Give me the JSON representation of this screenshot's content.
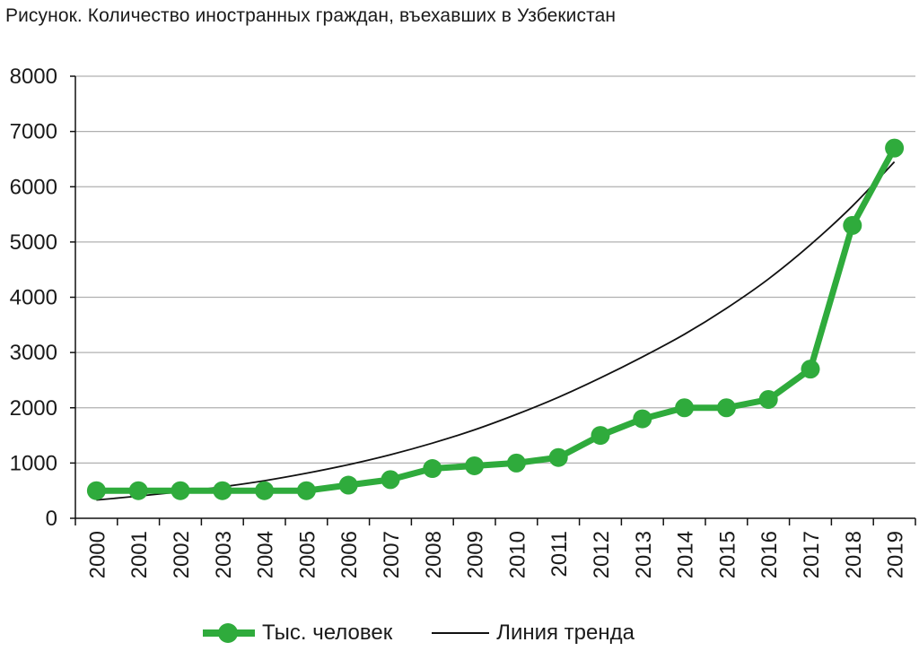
{
  "title": "Рисунок. Количество иностранных граждан, въехавших в Узбекистан",
  "colors": {
    "series": "#2fab3c",
    "trend": "#111111",
    "grid": "#b0b0b0",
    "axis": "#111111"
  },
  "chart_data": {
    "type": "line",
    "title": "Рисунок. Количество иностранных граждан, въехавших в Узбекистан",
    "xlabel": "",
    "ylabel": "",
    "ylim": [
      0,
      8000
    ],
    "yticks": [
      0,
      1000,
      2000,
      3000,
      4000,
      5000,
      6000,
      7000,
      8000
    ],
    "ytick_labels": [
      "0",
      "1000",
      "2000",
      "3000",
      "4000",
      "5000",
      "6000",
      "7000",
      "8000"
    ],
    "categories": [
      "2000",
      "2001",
      "2002",
      "2003",
      "2004",
      "2005",
      "2006",
      "2007",
      "2008",
      "2009",
      "2010",
      "2011",
      "2012",
      "2013",
      "2014",
      "2015",
      "2016",
      "2017",
      "2018",
      "2019"
    ],
    "grid": true,
    "legend_position": "bottom",
    "series": [
      {
        "name": "Тыс. человек",
        "style": "line-marker",
        "values": [
          500,
          500,
          500,
          500,
          500,
          500,
          600,
          700,
          900,
          950,
          1000,
          1100,
          1500,
          1800,
          2000,
          2000,
          2150,
          2700,
          5300,
          6700
        ]
      },
      {
        "name": "Линия тренда",
        "style": "trend-exponential",
        "values": [
          330,
          402,
          480,
          570,
          680,
          815,
          970,
          1150,
          1360,
          1600,
          1880,
          2190,
          2540,
          2920,
          3330,
          3800,
          4330,
          4950,
          5650,
          6450
        ]
      }
    ]
  }
}
